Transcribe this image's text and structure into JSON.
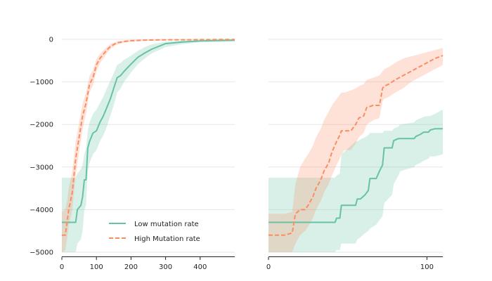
{
  "colors": {
    "low": "#66c2a5",
    "high": "#fc8d62",
    "grid": "#e6e6e6",
    "axis": "#222222"
  },
  "legend": {
    "items": [
      {
        "key": "low",
        "label": "Low mutation rate",
        "style": "solid"
      },
      {
        "key": "high",
        "label": "High Mutation rate",
        "style": "dashed"
      }
    ]
  },
  "chart_data": [
    {
      "type": "line",
      "panel": "left",
      "title": "",
      "xlabel": "",
      "ylabel": "",
      "xlim": [
        0,
        500
      ],
      "ylim": [
        -5100,
        100
      ],
      "xticks": [
        0,
        100,
        200,
        300,
        400
      ],
      "yticks": [
        0,
        -1000,
        -2000,
        -3000,
        -4000,
        -5000
      ],
      "ytick_labels": [
        "0",
        "−1000",
        "−2000",
        "−3000",
        "−4000",
        "−5000"
      ],
      "grid": "horizontal",
      "legend_position": "lower-right",
      "series": [
        {
          "key": "low",
          "name": "Low mutation rate",
          "style": "solid",
          "x": [
            0,
            40,
            45,
            55,
            60,
            65,
            70,
            75,
            80,
            90,
            100,
            110,
            120,
            130,
            140,
            150,
            160,
            170,
            180,
            200,
            220,
            240,
            260,
            300,
            350,
            400,
            500
          ],
          "y": [
            -4300,
            -4300,
            -4000,
            -3900,
            -3700,
            -3300,
            -3300,
            -2550,
            -2400,
            -2200,
            -2150,
            -1950,
            -1800,
            -1600,
            -1400,
            -1150,
            -900,
            -850,
            -750,
            -580,
            -420,
            -320,
            -230,
            -100,
            -60,
            -35,
            -20
          ],
          "lower": [
            -5000,
            -5000,
            -4800,
            -4700,
            -4500,
            -4000,
            -3900,
            -3100,
            -2900,
            -2700,
            -2600,
            -2400,
            -2250,
            -2050,
            -1800,
            -1550,
            -1250,
            -1150,
            -1000,
            -780,
            -580,
            -450,
            -330,
            -180,
            -110,
            -70,
            -50
          ],
          "upper": [
            -3250,
            -3250,
            -3150,
            -3050,
            -2950,
            -2700,
            -2550,
            -2150,
            -1950,
            -1750,
            -1650,
            -1500,
            -1350,
            -1150,
            -980,
            -800,
            -600,
            -550,
            -480,
            -380,
            -270,
            -180,
            -120,
            -50,
            -25,
            -15,
            -5
          ]
        },
        {
          "key": "high",
          "name": "High Mutation rate",
          "style": "dashed",
          "x": [
            0,
            10,
            15,
            20,
            30,
            40,
            50,
            60,
            70,
            80,
            90,
            100,
            110,
            120,
            130,
            140,
            150,
            160,
            180,
            200,
            250,
            300,
            400,
            500
          ],
          "y": [
            -4600,
            -4600,
            -4300,
            -4000,
            -3600,
            -2800,
            -2300,
            -1800,
            -1500,
            -1050,
            -900,
            -600,
            -450,
            -350,
            -250,
            -170,
            -120,
            -80,
            -50,
            -30,
            -15,
            -10,
            -5,
            -2
          ],
          "lower": [
            -5000,
            -4950,
            -4700,
            -4400,
            -4000,
            -3200,
            -2650,
            -2100,
            -1750,
            -1250,
            -1080,
            -760,
            -570,
            -450,
            -330,
            -230,
            -170,
            -120,
            -80,
            -55,
            -30,
            -20,
            -10,
            -5
          ],
          "upper": [
            -4050,
            -4000,
            -3800,
            -3500,
            -3100,
            -2400,
            -1950,
            -1500,
            -1250,
            -850,
            -720,
            -460,
            -340,
            -260,
            -180,
            -110,
            -75,
            -45,
            -25,
            -12,
            -5,
            -3,
            -1,
            0
          ]
        }
      ]
    },
    {
      "type": "line",
      "panel": "right",
      "title": "",
      "xlabel": "",
      "ylabel": "",
      "xlim": [
        0,
        110
      ],
      "ylim": [
        -5100,
        100
      ],
      "xticks": [
        0,
        100
      ],
      "grid": "horizontal",
      "series": [
        {
          "key": "low",
          "name": "Low mutation rate",
          "style": "solid",
          "x": [
            0,
            42,
            43,
            45,
            46,
            55,
            56,
            58,
            61,
            63,
            64,
            68,
            70,
            72,
            73,
            78,
            79,
            82,
            83,
            92,
            93,
            96,
            98,
            101,
            102,
            105,
            110
          ],
          "y": [
            -4300,
            -4300,
            -4200,
            -4200,
            -3900,
            -3900,
            -3750,
            -3750,
            -3650,
            -3550,
            -3270,
            -3270,
            -3100,
            -2950,
            -2550,
            -2550,
            -2380,
            -2330,
            -2330,
            -2330,
            -2280,
            -2230,
            -2180,
            -2180,
            -2130,
            -2100,
            -2100
          ],
          "lower": [
            -5000,
            -5000,
            -4950,
            -4950,
            -4800,
            -4800,
            -4700,
            -4650,
            -4550,
            -4500,
            -4450,
            -4350,
            -4250,
            -4150,
            -3850,
            -3650,
            -3400,
            -3200,
            -3100,
            -3000,
            -2950,
            -2900,
            -2850,
            -2800,
            -2750,
            -2750,
            -2700
          ],
          "upper": [
            -3250,
            -3250,
            -3200,
            -3150,
            -2700,
            -2400,
            -2400,
            -2350,
            -2300,
            -2250,
            -2200,
            -2200,
            -2200,
            -2200,
            -2150,
            -2150,
            -2100,
            -2050,
            -2000,
            -1950,
            -1900,
            -1850,
            -1820,
            -1800,
            -1800,
            -1750,
            -1650
          ]
        },
        {
          "key": "high",
          "name": "High Mutation rate",
          "style": "dashed",
          "x": [
            0,
            10,
            15,
            17,
            20,
            23,
            25,
            28,
            30,
            33,
            35,
            38,
            40,
            43,
            45,
            46,
            47,
            48,
            52,
            55,
            57,
            60,
            62,
            66,
            70,
            72,
            73,
            76,
            80,
            85,
            90,
            95,
            100,
            105,
            110
          ],
          "y": [
            -4600,
            -4600,
            -4550,
            -4100,
            -4000,
            -4000,
            -3900,
            -3700,
            -3500,
            -3300,
            -3100,
            -2900,
            -2650,
            -2400,
            -2250,
            -2150,
            -2150,
            -2150,
            -2150,
            -2000,
            -1850,
            -1800,
            -1600,
            -1550,
            -1550,
            -1150,
            -1100,
            -1050,
            -950,
            -850,
            -750,
            -650,
            -550,
            -450,
            -380
          ],
          "lower": [
            -5000,
            -5000,
            -5000,
            -4800,
            -4600,
            -4500,
            -4400,
            -4200,
            -4000,
            -3800,
            -3600,
            -3400,
            -3200,
            -2950,
            -2800,
            -2700,
            -2650,
            -2600,
            -2600,
            -2450,
            -2300,
            -2200,
            -2000,
            -1900,
            -1850,
            -1450,
            -1400,
            -1350,
            -1250,
            -1150,
            -1000,
            -900,
            -800,
            -700,
            -600
          ],
          "upper": [
            -4100,
            -4100,
            -4050,
            -3400,
            -3000,
            -2800,
            -2700,
            -2500,
            -2300,
            -2100,
            -1900,
            -1700,
            -1550,
            -1400,
            -1300,
            -1250,
            -1250,
            -1250,
            -1200,
            -1150,
            -1100,
            -1050,
            -950,
            -900,
            -850,
            -750,
            -700,
            -650,
            -550,
            -450,
            -400,
            -350,
            -300,
            -250,
            -200
          ]
        }
      ]
    }
  ]
}
